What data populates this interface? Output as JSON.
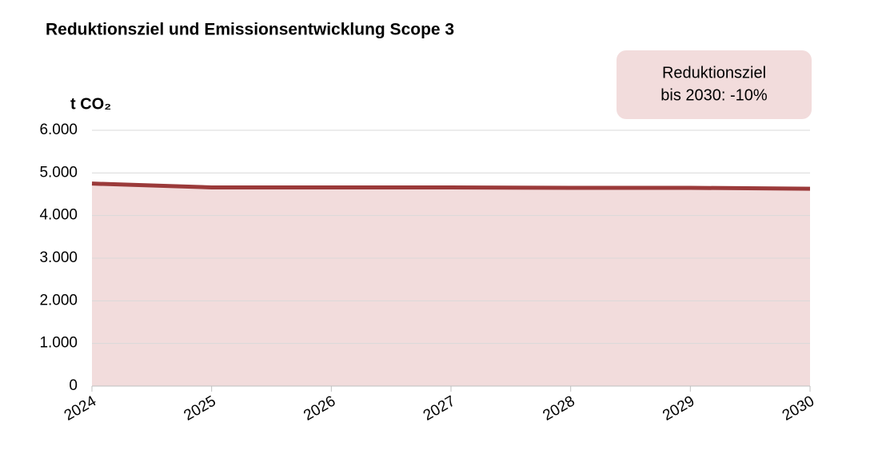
{
  "chart_data": {
    "type": "area",
    "title": "Reduktionsziel und Emissionsentwicklung Scope 3",
    "y_label": "t CO₂",
    "annotation": [
      "Reduktionsziel",
      "bis 2030: -10%"
    ],
    "x": [
      2024,
      2025,
      2026,
      2027,
      2028,
      2029,
      2030
    ],
    "values": [
      4750,
      4660,
      4660,
      4660,
      4650,
      4650,
      4630
    ],
    "color": "#9b3a3a",
    "fill": "#f2dcdc",
    "xlim": [
      2024,
      2030
    ],
    "xticks": [
      2024,
      2025,
      2026,
      2027,
      2028,
      2029,
      2030
    ],
    "ylim": [
      0,
      6000
    ],
    "yticks": [
      0,
      {
        "value": 1000,
        "label": "1.000"
      },
      {
        "value": 2000,
        "label": "2.000"
      },
      {
        "value": 3000,
        "label": "3.000"
      },
      {
        "value": 4000,
        "label": "4.000"
      },
      {
        "value": 5000,
        "label": "5.000"
      },
      {
        "value": 6000,
        "label": "6.000"
      }
    ],
    "grid": true
  }
}
